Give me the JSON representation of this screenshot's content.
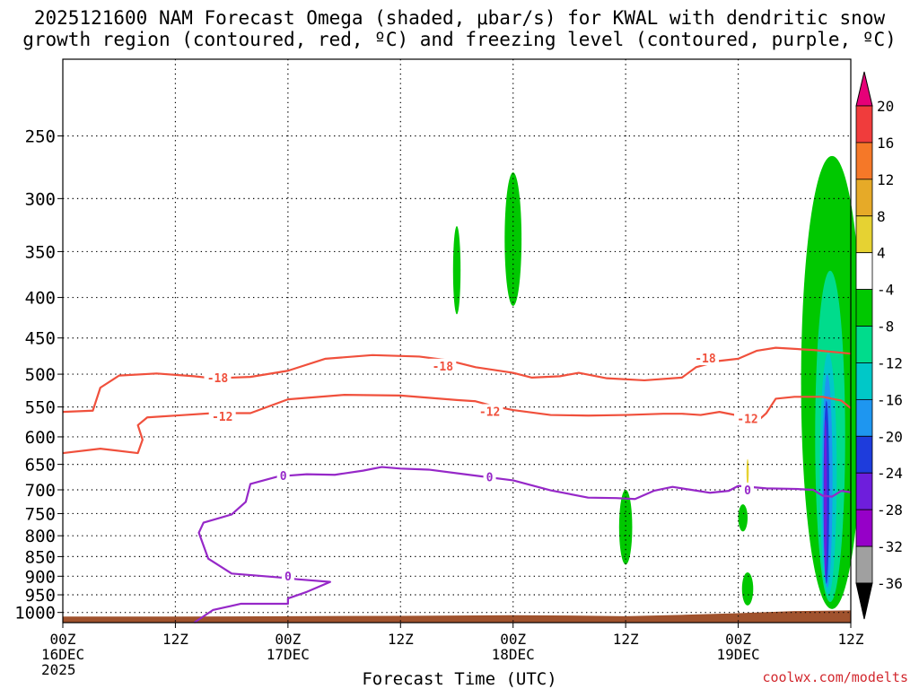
{
  "title": {
    "line1": "2025121600 NAM Forecast Omega (shaded, μbar/s) for KWAL with dendritic snow",
    "line2": "growth region (contoured, red, ºC) and freezing level (contoured, purple, ºC)"
  },
  "xlabel": "Forecast Time (UTC)",
  "credit": "coolwx.com/modelts",
  "colors": {
    "dgz": "#f0503c",
    "freezing": "#9628c8",
    "terrain": "#a0522d",
    "grid": "#000000"
  },
  "chart_data": {
    "type": "heatmap",
    "y_axis": {
      "quantity": "pressure (mb)",
      "scale": "log",
      "reversed": true,
      "range": [
        200,
        1030
      ],
      "ticks": [
        250,
        300,
        350,
        400,
        450,
        500,
        550,
        600,
        650,
        700,
        750,
        800,
        850,
        900,
        950,
        1000
      ]
    },
    "x_axis": {
      "quantity": "forecast hour",
      "range": [
        0,
        84
      ],
      "ticks": [
        {
          "hour": 0,
          "lines": [
            "00Z",
            "16DEC",
            "2025"
          ]
        },
        {
          "hour": 12,
          "lines": [
            "12Z"
          ]
        },
        {
          "hour": 24,
          "lines": [
            "00Z",
            "17DEC"
          ]
        },
        {
          "hour": 36,
          "lines": [
            "12Z"
          ]
        },
        {
          "hour": 48,
          "lines": [
            "00Z",
            "18DEC"
          ]
        },
        {
          "hour": 60,
          "lines": [
            "12Z"
          ]
        },
        {
          "hour": 72,
          "lines": [
            "00Z",
            "19DEC"
          ]
        },
        {
          "hour": 84,
          "lines": [
            "12Z"
          ]
        }
      ]
    },
    "grid": true,
    "colorbar": {
      "levels": [
        "20",
        "16",
        "12",
        "8",
        "4",
        "-4",
        "-8",
        "-12",
        "-16",
        "-20",
        "-24",
        "-28",
        "-32",
        "-36"
      ],
      "colors": [
        "#e60078",
        "#f03c3c",
        "#f57828",
        "#e6aa28",
        "#e6d232",
        "#ffffff",
        "#00c800",
        "#00dc8c",
        "#00c8c8",
        "#1e96f0",
        "#1e3cdc",
        "#6e1edc",
        "#9600c8",
        "#a0a0a0",
        "#000000"
      ]
    },
    "contours": [
      {
        "name": "-18",
        "color": "#f0503c",
        "label_points": [
          [
            16.5,
            505
          ],
          [
            40.5,
            488
          ],
          [
            68.5,
            477
          ]
        ],
        "points": [
          [
            0,
            558
          ],
          [
            3.2,
            556
          ],
          [
            4,
            520
          ],
          [
            6,
            502
          ],
          [
            10,
            499
          ],
          [
            14,
            503
          ],
          [
            16,
            506
          ],
          [
            20,
            504
          ],
          [
            24,
            495
          ],
          [
            28,
            478
          ],
          [
            33,
            473
          ],
          [
            38,
            475
          ],
          [
            41,
            480
          ],
          [
            44,
            490
          ],
          [
            48,
            498
          ],
          [
            50,
            505
          ],
          [
            53,
            503
          ],
          [
            55,
            498
          ],
          [
            58,
            506
          ],
          [
            62,
            509
          ],
          [
            66,
            505
          ],
          [
            67.5,
            490
          ],
          [
            70,
            481
          ],
          [
            72,
            478
          ],
          [
            74,
            467
          ],
          [
            76,
            463
          ],
          [
            80,
            466
          ],
          [
            84,
            471
          ]
        ]
      },
      {
        "name": "-12",
        "color": "#f0503c",
        "label_points": [
          [
            17,
            565
          ],
          [
            45.5,
            557
          ],
          [
            73,
            569
          ]
        ],
        "points": [
          [
            0,
            629
          ],
          [
            4,
            621
          ],
          [
            8,
            629
          ],
          [
            8.5,
            605
          ],
          [
            8,
            580
          ],
          [
            9,
            567
          ],
          [
            13,
            563
          ],
          [
            16,
            560
          ],
          [
            20,
            560
          ],
          [
            24,
            538
          ],
          [
            30,
            531
          ],
          [
            36,
            532
          ],
          [
            42,
            539
          ],
          [
            44,
            541
          ],
          [
            46,
            549
          ],
          [
            48,
            555
          ],
          [
            52,
            563
          ],
          [
            56,
            564
          ],
          [
            60,
            563
          ],
          [
            64,
            561
          ],
          [
            66,
            561
          ],
          [
            68,
            563
          ],
          [
            70,
            558
          ],
          [
            72,
            564
          ],
          [
            74,
            574
          ],
          [
            75,
            560
          ],
          [
            76,
            537
          ],
          [
            78,
            534
          ],
          [
            81,
            534
          ],
          [
            83,
            540
          ],
          [
            84,
            552
          ]
        ]
      },
      {
        "name": "0",
        "color": "#9628c8",
        "label_points": [
          [
            23.5,
            671
          ],
          [
            45.5,
            674
          ],
          [
            73,
            700
          ],
          [
            24,
            899
          ]
        ],
        "points": [
          [
            14,
            1030
          ],
          [
            16,
            993
          ],
          [
            19,
            975
          ],
          [
            24,
            975
          ],
          [
            24,
            960
          ],
          [
            26,
            942
          ],
          [
            28.5,
            915
          ],
          [
            25,
            908
          ],
          [
            23,
            903
          ],
          [
            18,
            893
          ],
          [
            15.5,
            855
          ],
          [
            14.5,
            793
          ],
          [
            15,
            770
          ],
          [
            18,
            752
          ],
          [
            19.5,
            725
          ],
          [
            20,
            688
          ],
          [
            23,
            673
          ],
          [
            26,
            669
          ],
          [
            29,
            670
          ],
          [
            32,
            662
          ],
          [
            34,
            655
          ],
          [
            36,
            658
          ],
          [
            39,
            660
          ],
          [
            45,
            674
          ],
          [
            48,
            681
          ],
          [
            52,
            701
          ],
          [
            56,
            716
          ],
          [
            59,
            717
          ],
          [
            61,
            719
          ],
          [
            63,
            702
          ],
          [
            65,
            694
          ],
          [
            67,
            700
          ],
          [
            69,
            706
          ],
          [
            71,
            702
          ],
          [
            72,
            692
          ],
          [
            75,
            697
          ],
          [
            78,
            698
          ],
          [
            80,
            700
          ],
          [
            81,
            712
          ],
          [
            82,
            714
          ],
          [
            83,
            702
          ],
          [
            84,
            705
          ]
        ]
      }
    ],
    "omega_regions": [
      {
        "value": -8,
        "color": "#00c800",
        "center": [
          48,
          340
        ],
        "half_hours": 0.9,
        "p_range": [
          278,
          410
        ]
      },
      {
        "value": -8,
        "color": "#00c800",
        "center": [
          42,
          370
        ],
        "half_hours": 0.4,
        "p_range": [
          325,
          420
        ]
      },
      {
        "value": -8,
        "color": "#00c800",
        "center": [
          60,
          760
        ],
        "half_hours": 0.7,
        "p_range": [
          700,
          870
        ]
      },
      {
        "value": -8,
        "color": "#00c800",
        "center": [
          72.5,
          745
        ],
        "half_hours": 0.5,
        "p_range": [
          730,
          790
        ]
      },
      {
        "value": -8,
        "color": "#00c800",
        "center": [
          73,
          930
        ],
        "half_hours": 0.6,
        "p_range": [
          890,
          980
        ]
      },
      {
        "value": -8,
        "color": "#00c800",
        "center": [
          82,
          600
        ],
        "half_hours": 3.3,
        "p_range": [
          265,
          990
        ]
      },
      {
        "value": -12,
        "color": "#00dc8c",
        "center": [
          81.8,
          600
        ],
        "half_hours": 1.6,
        "p_range": [
          370,
          970
        ]
      },
      {
        "value": -16,
        "color": "#00c8c8",
        "center": [
          81.6,
          650
        ],
        "half_hours": 0.9,
        "p_range": [
          470,
          950
        ]
      },
      {
        "value": -20,
        "color": "#1e96f0",
        "center": [
          81.5,
          620
        ],
        "half_hours": 0.55,
        "p_range": [
          500,
          930
        ]
      },
      {
        "value": -24,
        "color": "#1e3cdc",
        "center": [
          81.4,
          620
        ],
        "half_hours": 0.3,
        "p_range": [
          540,
          920
        ]
      },
      {
        "value": -28,
        "color": "#6e1edc",
        "center": [
          81.3,
          610
        ],
        "half_hours": 0.16,
        "p_range": [
          570,
          905
        ]
      },
      {
        "value": 4,
        "color": "#e6d232",
        "center": [
          73,
          665
        ],
        "half_hours": 0.12,
        "p_range": [
          640,
          690
        ]
      }
    ],
    "terrain": {
      "color": "#a0522d",
      "points": [
        [
          0,
          1012
        ],
        [
          12,
          1012
        ],
        [
          24,
          1011
        ],
        [
          36,
          1010
        ],
        [
          48,
          1008
        ],
        [
          54,
          1009
        ],
        [
          60,
          1011
        ],
        [
          66,
          1007
        ],
        [
          72,
          1002
        ],
        [
          78,
          996
        ],
        [
          84,
          994
        ]
      ]
    }
  }
}
